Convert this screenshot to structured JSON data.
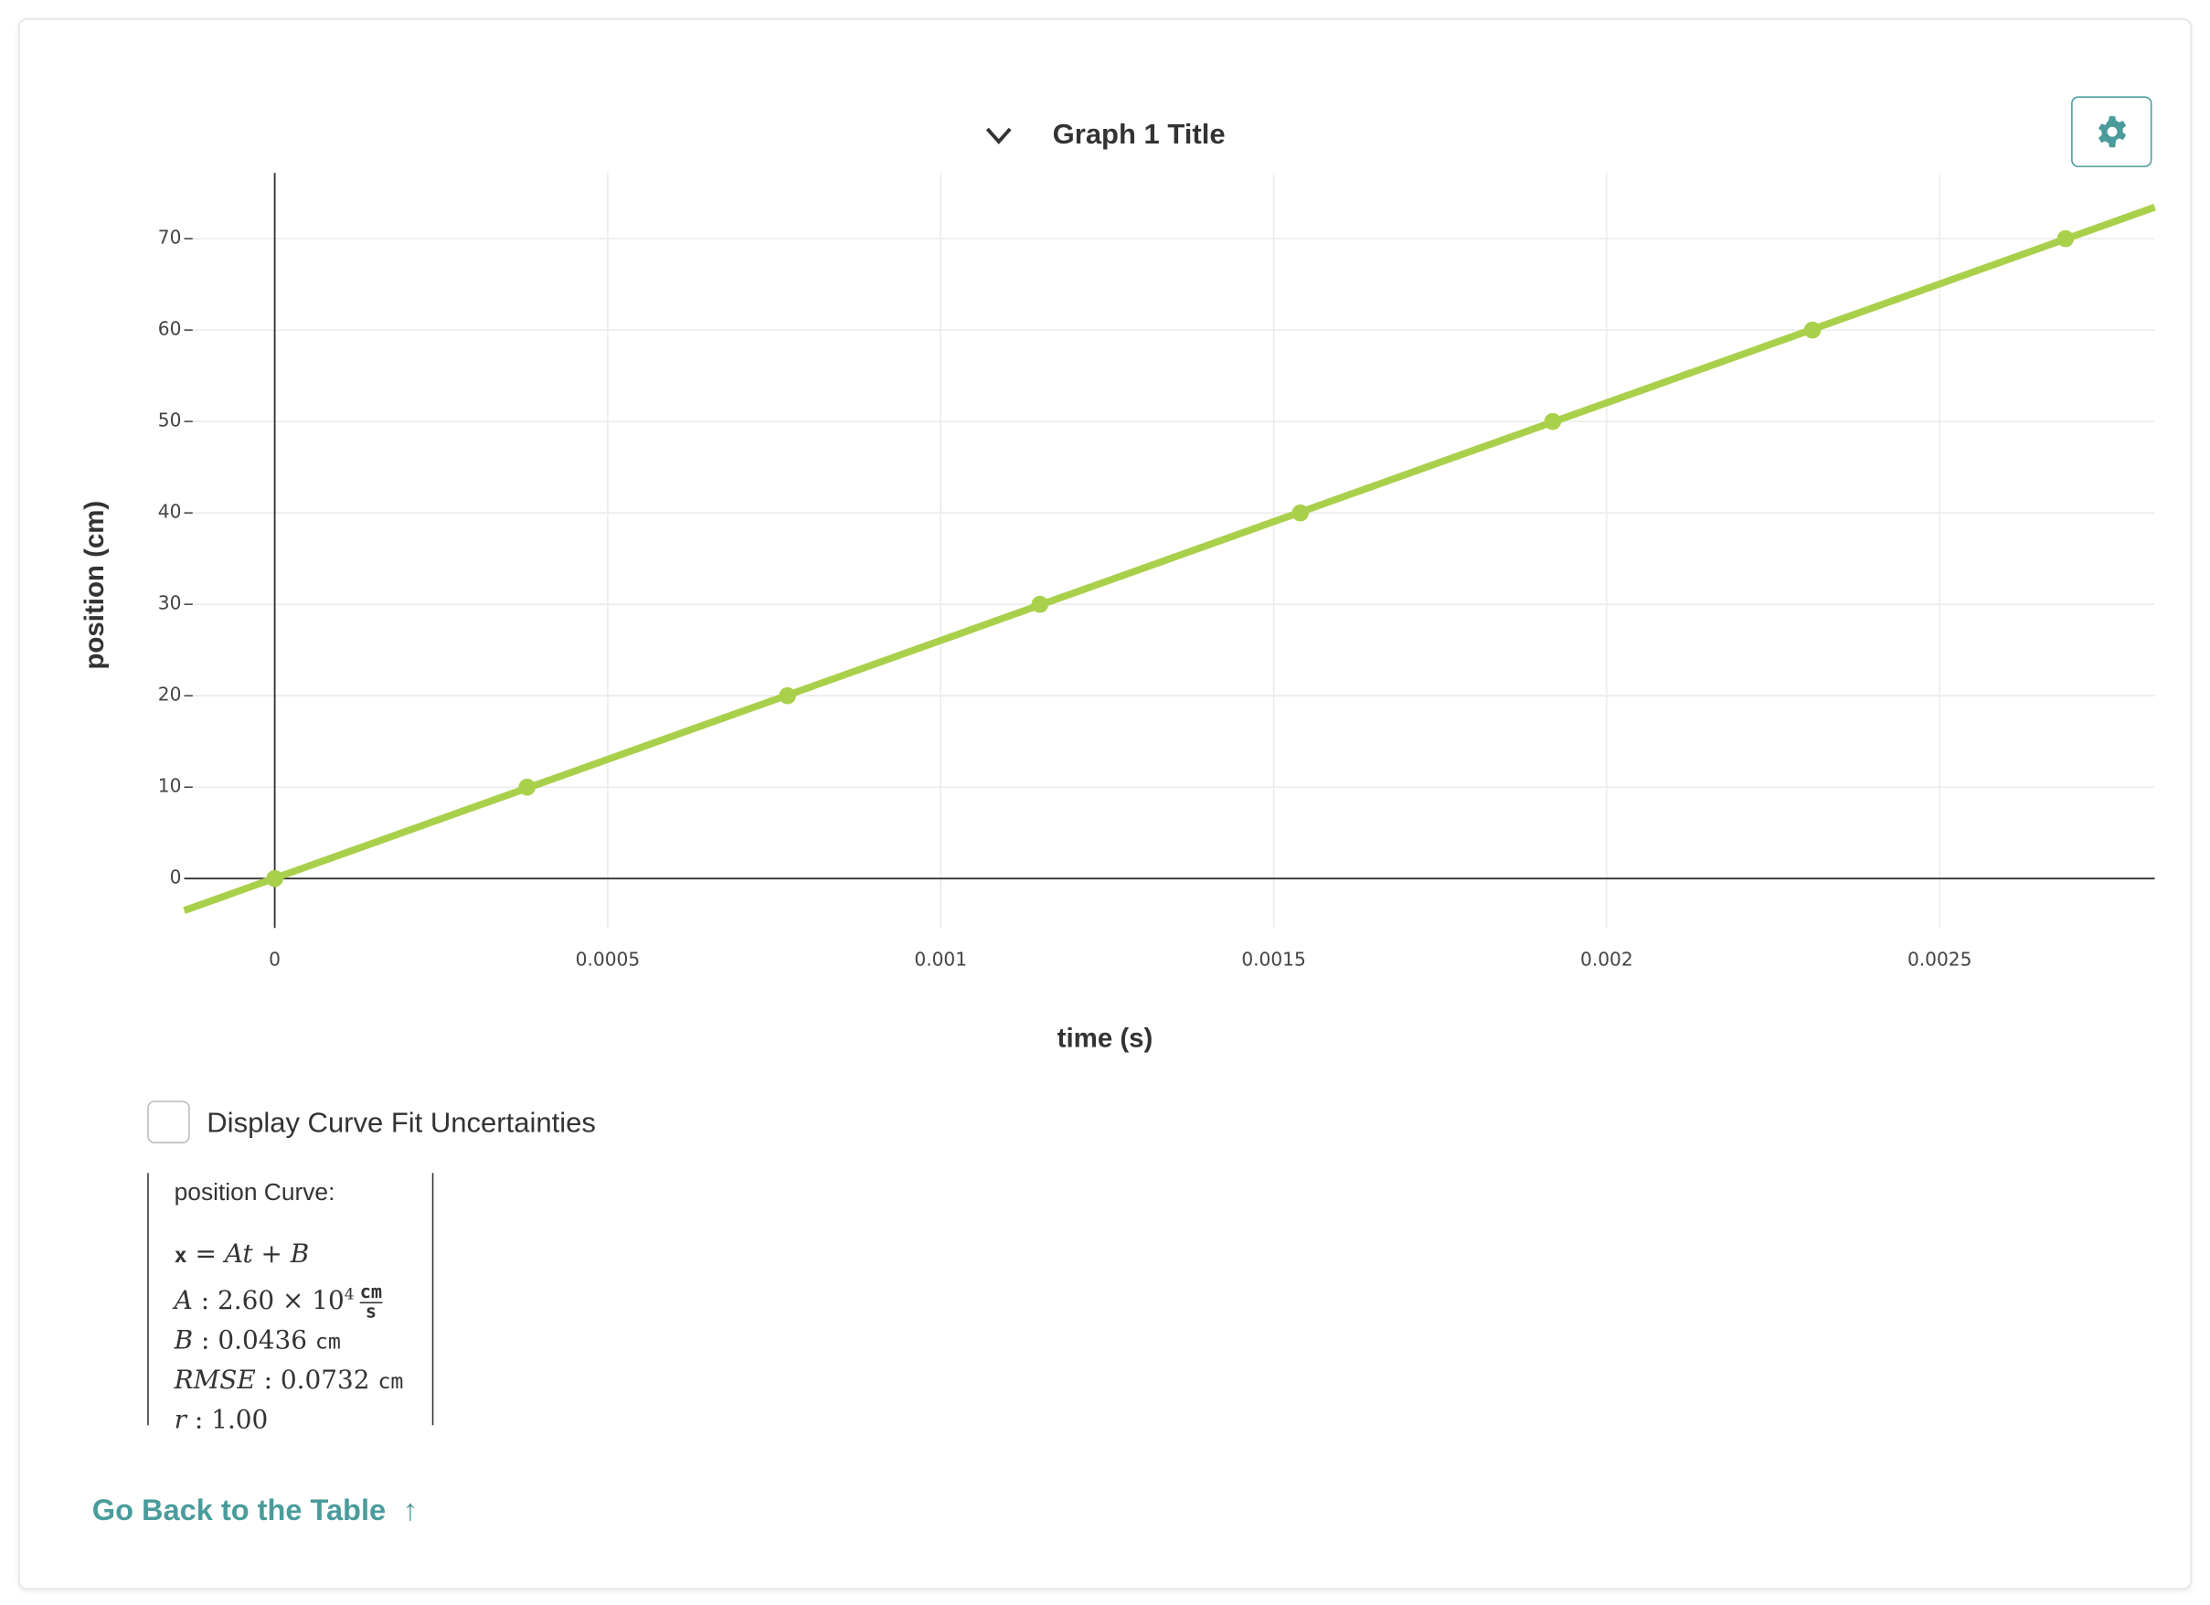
{
  "chart_data": {
    "type": "scatter",
    "title": "Graph 1 Title",
    "x_label": "time (s)",
    "y_label": "position (cm)",
    "x": [
      0,
      0.000379,
      0.00077,
      0.001149,
      0.00154,
      0.001919,
      0.002309,
      0.002689
    ],
    "series": [
      {
        "color": "#a9d04a",
        "values": [
          0,
          10,
          20,
          30,
          40,
          50,
          60,
          70
        ]
      }
    ],
    "fit": {
      "A": 26000,
      "B": 0.0436,
      "color": "#a9d04a"
    },
    "xlim": [
      -0.000136,
      0.002823
    ],
    "ylim": [
      -5.4,
      77.2
    ],
    "xticks": [
      0,
      0.0005,
      0.001,
      0.0015,
      0.002,
      0.0025
    ],
    "yticks": [
      0,
      10,
      20,
      30,
      40,
      50,
      60,
      70
    ],
    "grid": true
  },
  "controls": {
    "checkbox_label": "Display Curve Fit Uncertainties",
    "back_link": "Go Back to the Table",
    "back_icon": "↑"
  },
  "curve_fit": {
    "heading": "position Curve:",
    "equation": {
      "lhs": "x",
      "op": "=",
      "rhs": "At + B"
    },
    "params": [
      {
        "name": "A",
        "sep": ":",
        "value": "2.60 × 10",
        "exp": "4",
        "unit_num": "cm",
        "unit_den": "s"
      },
      {
        "name": "B",
        "sep": ":",
        "value": "0.0436",
        "unit": "cm"
      },
      {
        "name": "RMSE",
        "sep": ":",
        "value": "0.0732",
        "unit": "cm"
      },
      {
        "name": "r",
        "sep": ":",
        "value": "1.00"
      }
    ]
  }
}
